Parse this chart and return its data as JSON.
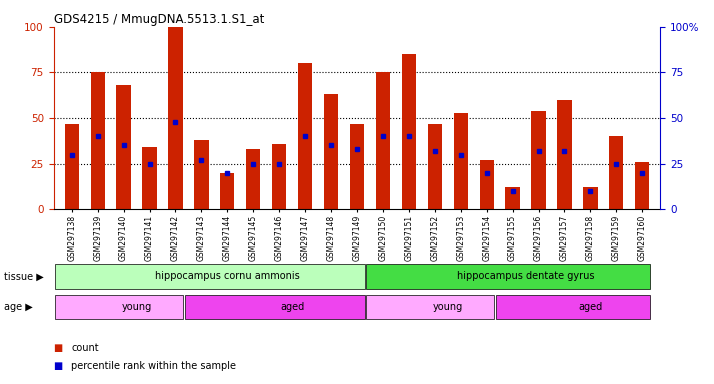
{
  "title": "GDS4215 / MmugDNA.5513.1.S1_at",
  "samples": [
    "GSM297138",
    "GSM297139",
    "GSM297140",
    "GSM297141",
    "GSM297142",
    "GSM297143",
    "GSM297144",
    "GSM297145",
    "GSM297146",
    "GSM297147",
    "GSM297148",
    "GSM297149",
    "GSM297150",
    "GSM297151",
    "GSM297152",
    "GSM297153",
    "GSM297154",
    "GSM297155",
    "GSM297156",
    "GSM297157",
    "GSM297158",
    "GSM297159",
    "GSM297160"
  ],
  "count_values": [
    47,
    75,
    68,
    34,
    100,
    38,
    20,
    33,
    36,
    80,
    63,
    47,
    75,
    85,
    47,
    53,
    27,
    12,
    54,
    60,
    12,
    40,
    26
  ],
  "percentile_values": [
    30,
    40,
    35,
    25,
    48,
    27,
    20,
    25,
    25,
    40,
    35,
    33,
    40,
    40,
    32,
    30,
    20,
    10,
    32,
    32,
    10,
    25,
    20
  ],
  "bar_color": "#cc2200",
  "dot_color": "#0000cc",
  "ylim": [
    0,
    100
  ],
  "yticks": [
    0,
    25,
    50,
    75,
    100
  ],
  "tissue_groups": [
    {
      "label": "hippocampus cornu ammonis",
      "start": 0,
      "end": 12,
      "color": "#bbffbb"
    },
    {
      "label": "hippocampus dentate gyrus",
      "start": 12,
      "end": 23,
      "color": "#44dd44"
    }
  ],
  "age_groups": [
    {
      "label": "young",
      "start": 0,
      "end": 5,
      "color": "#ffaaff"
    },
    {
      "label": "aged",
      "start": 5,
      "end": 12,
      "color": "#ee44ee"
    },
    {
      "label": "young",
      "start": 12,
      "end": 17,
      "color": "#ffaaff"
    },
    {
      "label": "aged",
      "start": 17,
      "end": 23,
      "color": "#ee44ee"
    }
  ],
  "tissue_label": "tissue",
  "age_label": "age",
  "legend_count_label": "count",
  "legend_pct_label": "percentile rank within the sample",
  "bg_color": "#ffffff",
  "left_ytick_color": "#cc2200",
  "right_ytick_color": "#0000cc",
  "bar_width": 0.55,
  "fig_width": 7.14,
  "fig_height": 3.84,
  "dpi": 100
}
